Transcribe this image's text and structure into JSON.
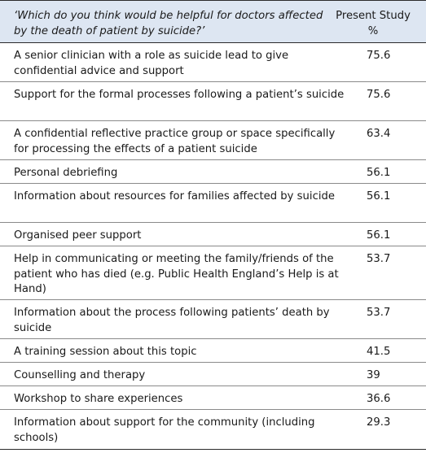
{
  "table": {
    "header": {
      "question": "‘Which do you think would be helpful for doctors affected by the death of patient by suicide?’",
      "column": "Present Study %"
    },
    "rows": [
      {
        "label": "A senior clinician with a role as suicide lead to give confidential advice and support",
        "value": "75.6"
      },
      {
        "label": "Support for the formal processes following a patient’s suicide",
        "value": "75.6"
      },
      {
        "label": "A confidential reflective practice group or space specifically for processing the effects of a patient suicide",
        "value": "63.4"
      },
      {
        "label": "Personal debriefing",
        "value": "56.1"
      },
      {
        "label": "Information about resources for families affected by suicide",
        "value": "56.1"
      },
      {
        "label": "Organised peer support",
        "value": "56.1"
      },
      {
        "label": "Help in communicating or meeting the family/friends of the patient who has died (e.g. Public Health England’s Help is at Hand)",
        "value": "53.7"
      },
      {
        "label": "Information about the process following patients’ death by suicide",
        "value": "53.7"
      },
      {
        "label": "A training session about this topic",
        "value": "41.5"
      },
      {
        "label": "Counselling and therapy",
        "value": "39"
      },
      {
        "label": "Workshop to share experiences",
        "value": "36.6"
      },
      {
        "label": "Information about support for the community (including schools)",
        "value": "29.3"
      }
    ]
  }
}
